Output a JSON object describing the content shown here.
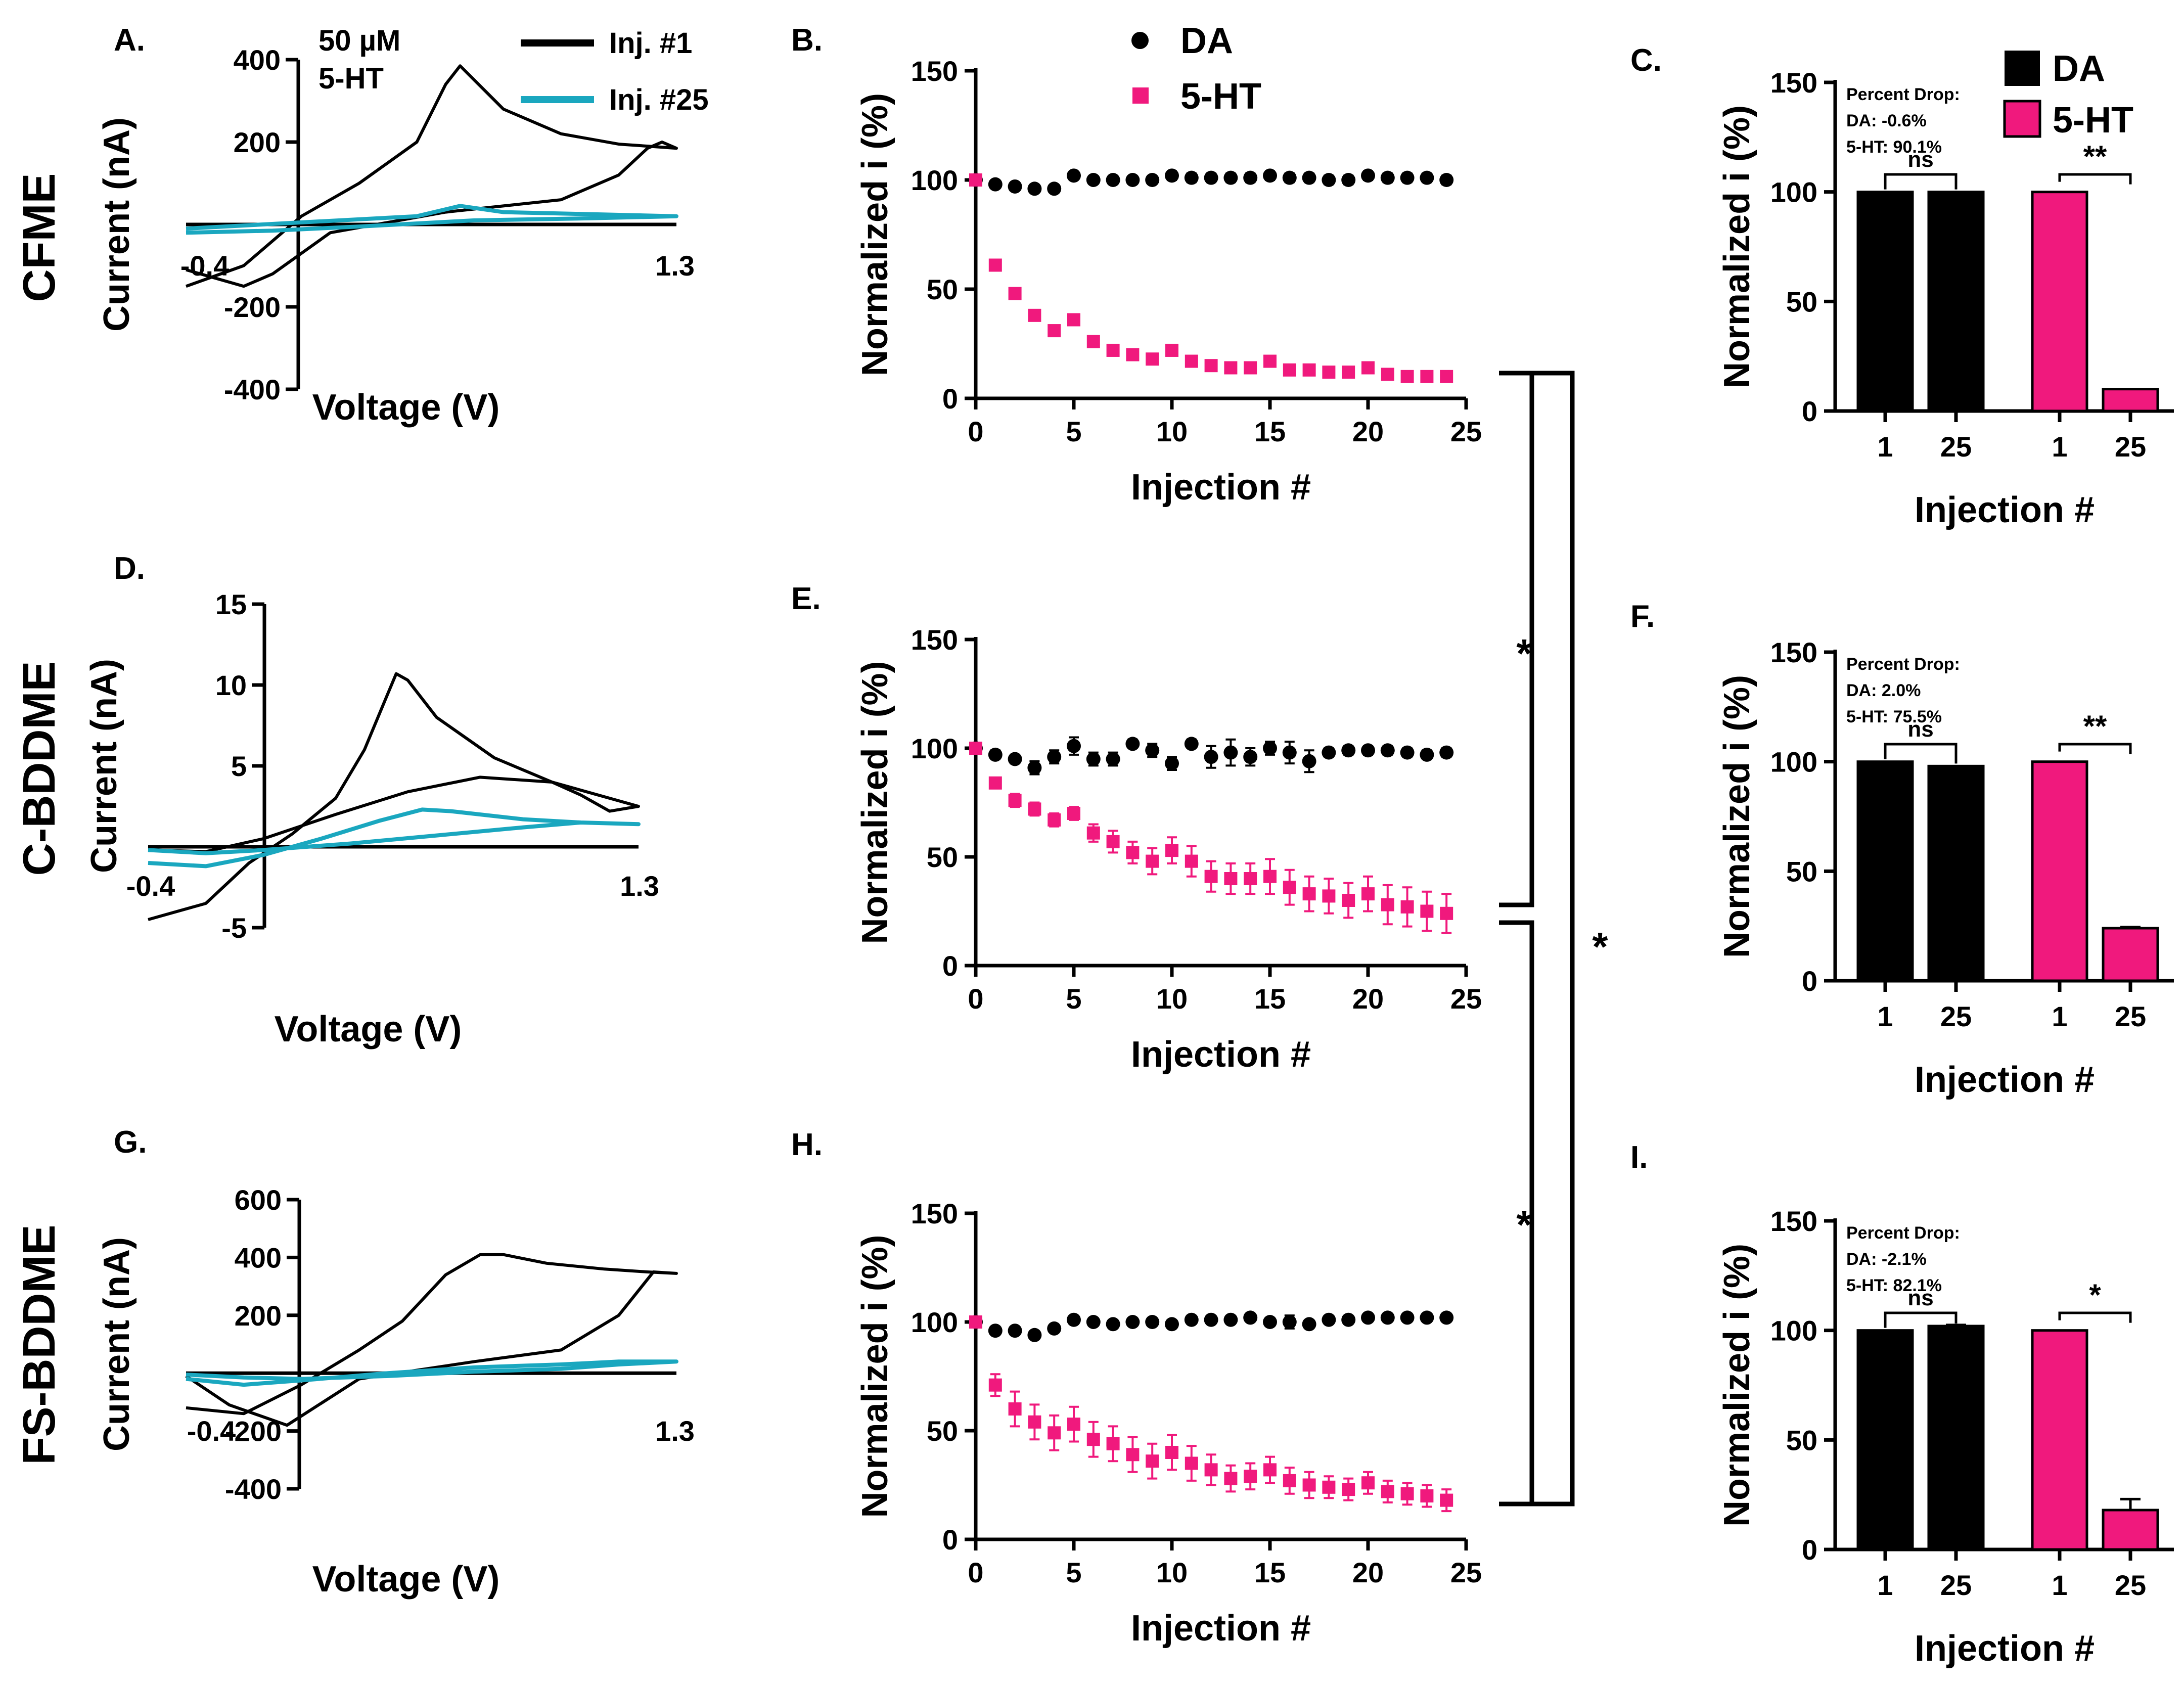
{
  "colors": {
    "black": "#000000",
    "teal": "#1aa7bf",
    "pink": "#f0197d"
  },
  "rows": [
    {
      "label": "CFME"
    },
    {
      "label": "C-BDDME"
    },
    {
      "label": "FS-BDDME"
    }
  ],
  "cv_legend": {
    "conc_line1": "50 µM",
    "conc_line2": "5-HT",
    "inj1": "Inj. #1",
    "inj25": "Inj. #25"
  },
  "inj_legend": {
    "da": "DA",
    "ht": "5-HT"
  },
  "bar_legend": {
    "da": "DA",
    "ht": "5-HT"
  },
  "sig_brackets": [
    {
      "label": "*"
    },
    {
      "label": "*"
    },
    {
      "label": "*"
    }
  ],
  "chart_data": [
    {
      "panel": "A.",
      "type": "line",
      "xlabel": "Voltage (V)",
      "ylabel": "Current (nA)",
      "xlim": [
        -0.4,
        1.3
      ],
      "ylim": [
        -400,
        400
      ],
      "x_ticks": [
        "-0.4",
        "1.3"
      ],
      "y_ticks": [
        "400",
        "200",
        "-200",
        "-400"
      ],
      "series": [
        {
          "name": "Inj. #1",
          "color": "#000000",
          "points": [
            [
              -0.4,
              -150
            ],
            [
              -0.2,
              -100
            ],
            [
              0,
              20
            ],
            [
              0.2,
              100
            ],
            [
              0.4,
              200
            ],
            [
              0.5,
              340
            ],
            [
              0.55,
              385
            ],
            [
              0.6,
              350
            ],
            [
              0.7,
              280
            ],
            [
              0.9,
              220
            ],
            [
              1.1,
              195
            ],
            [
              1.2,
              190
            ],
            [
              1.3,
              185
            ],
            [
              1.25,
              200
            ],
            [
              1.2,
              185
            ],
            [
              1.1,
              120
            ],
            [
              0.9,
              60
            ],
            [
              0.5,
              30
            ],
            [
              0.1,
              -20
            ],
            [
              -0.1,
              -120
            ],
            [
              -0.2,
              -150
            ],
            [
              -0.3,
              -130
            ],
            [
              -0.4,
              -110
            ]
          ]
        },
        {
          "name": "Inj. #25",
          "color": "#1aa7bf",
          "points": [
            [
              -0.4,
              -10
            ],
            [
              0,
              5
            ],
            [
              0.4,
              20
            ],
            [
              0.55,
              45
            ],
            [
              0.7,
              30
            ],
            [
              1.0,
              25
            ],
            [
              1.3,
              20
            ],
            [
              1.0,
              15
            ],
            [
              0.6,
              10
            ],
            [
              0.2,
              -5
            ],
            [
              -0.1,
              -15
            ],
            [
              -0.4,
              -20
            ]
          ]
        }
      ]
    },
    {
      "panel": "D.",
      "type": "line",
      "xlabel": "Voltage (V)",
      "ylabel": "Current (nA)",
      "xlim": [
        -0.4,
        1.3
      ],
      "ylim": [
        -5,
        15
      ],
      "x_ticks": [
        "-0.4",
        "1.3"
      ],
      "y_ticks": [
        "15",
        "10",
        "5",
        "-5"
      ],
      "series": [
        {
          "name": "Inj. #1",
          "color": "#000000",
          "points": [
            [
              -0.4,
              -4.5
            ],
            [
              -0.2,
              -3.5
            ],
            [
              -0.05,
              -1
            ],
            [
              0.1,
              0.8
            ],
            [
              0.25,
              3
            ],
            [
              0.35,
              6
            ],
            [
              0.42,
              9
            ],
            [
              0.46,
              10.7
            ],
            [
              0.5,
              10.3
            ],
            [
              0.6,
              8
            ],
            [
              0.8,
              5.5
            ],
            [
              1.0,
              4
            ],
            [
              1.1,
              3.2
            ],
            [
              1.2,
              2.2
            ],
            [
              1.3,
              2.5
            ],
            [
              1.2,
              3
            ],
            [
              1.0,
              4
            ],
            [
              0.75,
              4.3
            ],
            [
              0.5,
              3.4
            ],
            [
              0.25,
              2
            ],
            [
              0.0,
              0.5
            ],
            [
              -0.2,
              -0.3
            ],
            [
              -0.4,
              -0.2
            ]
          ]
        },
        {
          "name": "Inj. #25",
          "color": "#1aa7bf",
          "points": [
            [
              -0.4,
              -1
            ],
            [
              -0.2,
              -1.2
            ],
            [
              0,
              -0.5
            ],
            [
              0.2,
              0.5
            ],
            [
              0.4,
              1.6
            ],
            [
              0.55,
              2.3
            ],
            [
              0.65,
              2.2
            ],
            [
              0.9,
              1.7
            ],
            [
              1.1,
              1.5
            ],
            [
              1.3,
              1.4
            ],
            [
              1.1,
              1.5
            ],
            [
              0.9,
              1.2
            ],
            [
              0.6,
              0.7
            ],
            [
              0.3,
              0.2
            ],
            [
              0,
              -0.2
            ],
            [
              -0.2,
              -0.4
            ],
            [
              -0.4,
              -0.2
            ]
          ]
        }
      ]
    },
    {
      "panel": "G.",
      "type": "line",
      "xlabel": "Voltage (V)",
      "ylabel": "Current (nA)",
      "xlim": [
        -0.4,
        1.3
      ],
      "ylim": [
        -400,
        600
      ],
      "x_ticks": [
        "-0.4",
        "1.3"
      ],
      "y_ticks": [
        "600",
        "400",
        "200",
        "-200",
        "-400"
      ],
      "series": [
        {
          "name": "Inj. #1",
          "color": "#000000",
          "points": [
            [
              -0.4,
              -120
            ],
            [
              -0.2,
              -140
            ],
            [
              0,
              -40
            ],
            [
              0.2,
              80
            ],
            [
              0.35,
              180
            ],
            [
              0.5,
              340
            ],
            [
              0.62,
              410
            ],
            [
              0.7,
              410
            ],
            [
              0.85,
              380
            ],
            [
              1.05,
              360
            ],
            [
              1.2,
              350
            ],
            [
              1.3,
              345
            ],
            [
              1.22,
              350
            ],
            [
              1.1,
              200
            ],
            [
              0.9,
              80
            ],
            [
              0.6,
              40
            ],
            [
              0.2,
              -20
            ],
            [
              -0.05,
              -180
            ],
            [
              -0.25,
              -110
            ],
            [
              -0.4,
              -10
            ]
          ]
        },
        {
          "name": "Inj. #25",
          "color": "#1aa7bf",
          "points": [
            [
              -0.4,
              -20
            ],
            [
              -0.2,
              -40
            ],
            [
              0,
              -25
            ],
            [
              0.3,
              0
            ],
            [
              0.6,
              20
            ],
            [
              0.9,
              30
            ],
            [
              1.1,
              40
            ],
            [
              1.3,
              40
            ],
            [
              1.1,
              30
            ],
            [
              0.9,
              15
            ],
            [
              0.6,
              5
            ],
            [
              0.3,
              -10
            ],
            [
              0,
              -20
            ],
            [
              -0.2,
              -15
            ],
            [
              -0.4,
              -5
            ]
          ]
        }
      ]
    },
    {
      "panel": "B.",
      "type": "scatter",
      "xlabel": "Injection #",
      "ylabel": "Normalized i (%)",
      "xlim": [
        0,
        25
      ],
      "ylim": [
        0,
        150
      ],
      "x_ticks": [
        "0",
        "5",
        "10",
        "15",
        "20",
        "25"
      ],
      "y_ticks": [
        "0",
        "50",
        "100",
        "150"
      ],
      "x": [
        0,
        1,
        2,
        3,
        4,
        5,
        6,
        7,
        8,
        9,
        10,
        11,
        12,
        13,
        14,
        15,
        16,
        17,
        18,
        19,
        20,
        21,
        22,
        23,
        24
      ],
      "series": [
        {
          "name": "DA",
          "color": "#000000",
          "marker": "circle",
          "values": [
            100,
            98,
            97,
            96,
            96,
            102,
            100,
            100,
            100,
            100,
            102,
            101,
            101,
            101,
            101,
            102,
            101,
            101,
            100,
            100,
            102,
            101,
            101,
            101,
            100
          ],
          "errors": [
            0,
            0,
            0,
            0,
            0,
            1,
            1,
            1,
            1,
            1,
            2,
            2,
            2,
            2,
            2,
            2,
            2,
            2,
            2,
            2,
            2,
            2,
            2,
            2,
            2
          ]
        },
        {
          "name": "5-HT",
          "color": "#f0197d",
          "marker": "square",
          "values": [
            100,
            61,
            48,
            38,
            31,
            36,
            26,
            22,
            20,
            18,
            22,
            17,
            15,
            14,
            14,
            17,
            13,
            13,
            12,
            12,
            14,
            11,
            10,
            10,
            10
          ],
          "errors": [
            0,
            0,
            0,
            0,
            0,
            0,
            0,
            0,
            0,
            0,
            0,
            0,
            0,
            0,
            0,
            0,
            0,
            0,
            0,
            0,
            0,
            0,
            0,
            0,
            0
          ]
        }
      ]
    },
    {
      "panel": "E.",
      "type": "scatter",
      "xlabel": "Injection #",
      "ylabel": "Normalized i (%)",
      "xlim": [
        0,
        25
      ],
      "ylim": [
        0,
        150
      ],
      "x_ticks": [
        "0",
        "5",
        "10",
        "15",
        "20",
        "25"
      ],
      "y_ticks": [
        "0",
        "50",
        "100",
        "150"
      ],
      "x": [
        0,
        1,
        2,
        3,
        4,
        5,
        6,
        7,
        8,
        9,
        10,
        11,
        12,
        13,
        14,
        15,
        16,
        17,
        18,
        19,
        20,
        21,
        22,
        23,
        24
      ],
      "series": [
        {
          "name": "DA",
          "color": "#000000",
          "marker": "circle",
          "values": [
            100,
            97,
            95,
            91,
            96,
            101,
            95,
            95,
            102,
            99,
            93,
            102,
            96,
            98,
            96,
            100,
            98,
            94,
            98,
            99,
            99,
            99,
            98,
            97,
            98
          ],
          "errors": [
            0,
            2,
            2,
            3,
            3,
            4,
            3,
            3,
            2,
            3,
            3,
            2,
            5,
            6,
            4,
            3,
            5,
            5,
            2,
            2,
            2,
            2,
            2,
            2,
            2
          ]
        },
        {
          "name": "5-HT",
          "color": "#f0197d",
          "marker": "square",
          "values": [
            100,
            84,
            76,
            72,
            67,
            70,
            61,
            57,
            52,
            48,
            53,
            48,
            41,
            40,
            40,
            41,
            36,
            33,
            32,
            30,
            33,
            28,
            27,
            25,
            24
          ],
          "errors": [
            0,
            2,
            3,
            3,
            3,
            3,
            4,
            5,
            5,
            6,
            6,
            7,
            7,
            7,
            7,
            8,
            8,
            8,
            8,
            8,
            8,
            9,
            9,
            9,
            9
          ]
        }
      ]
    },
    {
      "panel": "H.",
      "type": "scatter",
      "xlabel": "Injection #",
      "ylabel": "Normalized i (%)",
      "xlim": [
        0,
        25
      ],
      "ylim": [
        0,
        150
      ],
      "x_ticks": [
        "0",
        "5",
        "10",
        "15",
        "20",
        "25"
      ],
      "y_ticks": [
        "0",
        "50",
        "100",
        "150"
      ],
      "x": [
        0,
        1,
        2,
        3,
        4,
        5,
        6,
        7,
        8,
        9,
        10,
        11,
        12,
        13,
        14,
        15,
        16,
        17,
        18,
        19,
        20,
        21,
        22,
        23,
        24
      ],
      "series": [
        {
          "name": "DA",
          "color": "#000000",
          "marker": "circle",
          "values": [
            100,
            96,
            96,
            94,
            97,
            101,
            100,
            99,
            100,
            100,
            99,
            101,
            101,
            101,
            102,
            100,
            100,
            99,
            101,
            101,
            102,
            102,
            102,
            102,
            102
          ],
          "errors": [
            0,
            1,
            1,
            1,
            1,
            1,
            1,
            1,
            1,
            1,
            1,
            1,
            1,
            1,
            1,
            1,
            3,
            1,
            1,
            1,
            1,
            1,
            1,
            1,
            1
          ]
        },
        {
          "name": "5-HT",
          "color": "#f0197d",
          "marker": "square",
          "values": [
            100,
            71,
            60,
            54,
            49,
            53,
            46,
            44,
            39,
            36,
            40,
            35,
            32,
            28,
            29,
            32,
            27,
            25,
            24,
            23,
            26,
            22,
            21,
            20,
            18
          ],
          "errors": [
            0,
            5,
            8,
            8,
            8,
            8,
            8,
            8,
            8,
            8,
            8,
            8,
            7,
            6,
            6,
            6,
            6,
            6,
            5,
            5,
            5,
            5,
            5,
            5,
            5
          ]
        }
      ]
    },
    {
      "panel": "C.",
      "type": "bar",
      "xlabel": "Injection #",
      "ylabel": "Normalized i (%)",
      "ylim": [
        0,
        150
      ],
      "y_ticks": [
        "0",
        "50",
        "100",
        "150"
      ],
      "categories": [
        "1",
        "25",
        "1",
        "25"
      ],
      "values": [
        100,
        100,
        100,
        10
      ],
      "errors": [
        0,
        0,
        0,
        0
      ],
      "colors": [
        "#000000",
        "#000000",
        "#f0197d",
        "#f0197d"
      ],
      "sig_labels": [
        "ns",
        "**"
      ],
      "notes": [
        "Percent Drop:",
        "DA: -0.6%",
        "5-HT: 90.1%"
      ]
    },
    {
      "panel": "F.",
      "type": "bar",
      "xlabel": "Injection #",
      "ylabel": "Normalized i (%)",
      "ylim": [
        0,
        150
      ],
      "y_ticks": [
        "0",
        "50",
        "100",
        "150"
      ],
      "categories": [
        "1",
        "25",
        "1",
        "25"
      ],
      "values": [
        100,
        98,
        100,
        24
      ],
      "errors": [
        0,
        0,
        0,
        0.5
      ],
      "colors": [
        "#000000",
        "#000000",
        "#f0197d",
        "#f0197d"
      ],
      "sig_labels": [
        "ns",
        "**"
      ],
      "notes": [
        "Percent Drop:",
        "DA: 2.0%",
        "5-HT: 75.5%"
      ]
    },
    {
      "panel": "I.",
      "type": "bar",
      "xlabel": "Injection #",
      "ylabel": "Normalized i (%)",
      "ylim": [
        0,
        150
      ],
      "y_ticks": [
        "0",
        "50",
        "100",
        "150"
      ],
      "categories": [
        "1",
        "25",
        "1",
        "25"
      ],
      "values": [
        100,
        102,
        100,
        18
      ],
      "errors": [
        0,
        0.5,
        0,
        5
      ],
      "colors": [
        "#000000",
        "#000000",
        "#f0197d",
        "#f0197d"
      ],
      "sig_labels": [
        "ns",
        "*"
      ],
      "notes": [
        "Percent Drop:",
        "DA: -2.1%",
        "5-HT: 82.1%"
      ]
    }
  ]
}
